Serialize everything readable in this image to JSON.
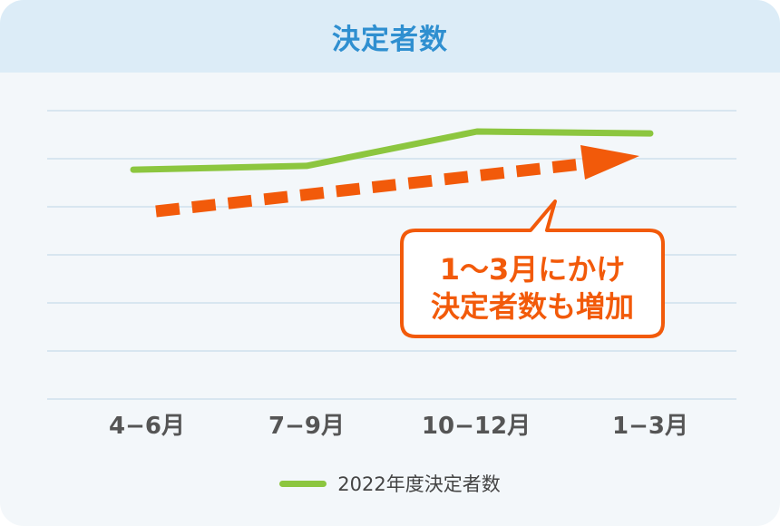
{
  "header": {
    "title": "決定者数"
  },
  "chart_data": {
    "type": "line",
    "title": "決定者数",
    "categories": [
      "4−6月",
      "7−9月",
      "10−12月",
      "1−3月"
    ],
    "series": [
      {
        "name": "2022年度決定者数",
        "values": [
          6.0,
          6.1,
          7.0,
          6.95
        ]
      }
    ],
    "ylim": [
      0,
      7.0
    ],
    "grid": true,
    "legend_position": "bottom-center",
    "annotation": {
      "lines": [
        "1〜3月にかけ",
        "決定者数も増加"
      ]
    },
    "colors": {
      "series": "#8cc63f",
      "trend_arrow": "#f25a0a",
      "grid": "#cfe0ec"
    }
  }
}
